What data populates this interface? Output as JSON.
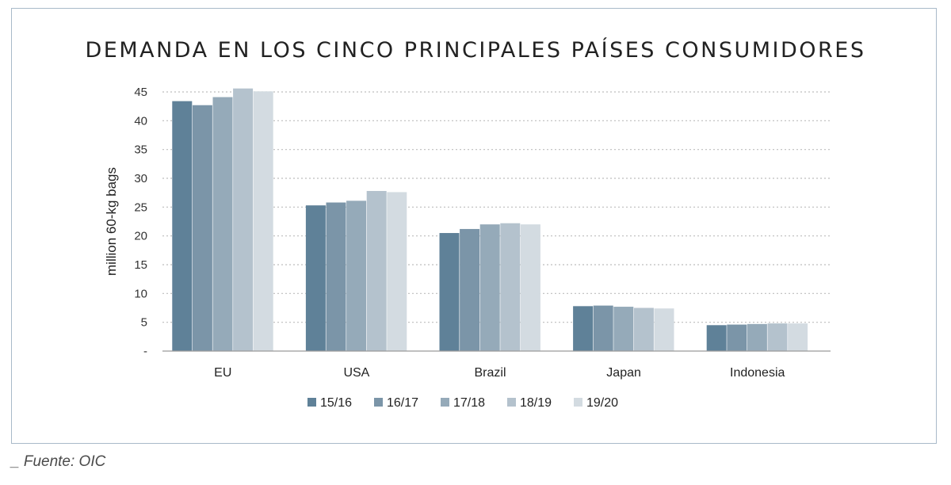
{
  "chart_data": {
    "type": "bar",
    "title": "DEMANDA EN LOS CINCO PRINCIPALES PAÍSES CONSUMIDORES",
    "ylabel": "million 60-kg bags",
    "xlabel": "",
    "ylim": [
      0,
      45
    ],
    "y_ticks": [
      {
        "value": 0,
        "label": "-"
      },
      {
        "value": 5,
        "label": "5"
      },
      {
        "value": 10,
        "label": "10"
      },
      {
        "value": 15,
        "label": "15"
      },
      {
        "value": 20,
        "label": "20"
      },
      {
        "value": 25,
        "label": "25"
      },
      {
        "value": 30,
        "label": "30"
      },
      {
        "value": 35,
        "label": "35"
      },
      {
        "value": 40,
        "label": "40"
      },
      {
        "value": 45,
        "label": "45"
      }
    ],
    "grid": true,
    "legend_position": "bottom",
    "categories": [
      "EU",
      "USA",
      "Brazil",
      "Japan",
      "Indonesia"
    ],
    "series": [
      {
        "name": "15/16",
        "color": "#5f8198",
        "values": [
          43.4,
          25.3,
          20.5,
          7.8,
          4.5
        ]
      },
      {
        "name": "16/17",
        "color": "#7b95a8",
        "values": [
          42.7,
          25.8,
          21.2,
          7.9,
          4.6
        ]
      },
      {
        "name": "17/18",
        "color": "#95aab9",
        "values": [
          44.1,
          26.1,
          22.0,
          7.7,
          4.7
        ]
      },
      {
        "name": "18/19",
        "color": "#b4c2cd",
        "values": [
          45.6,
          27.8,
          22.2,
          7.5,
          4.8
        ]
      },
      {
        "name": "19/20",
        "color": "#d3dbe1",
        "values": [
          45.1,
          27.6,
          22.0,
          7.4,
          4.8
        ]
      }
    ]
  },
  "footer": {
    "source": "_ Fuente: OIC"
  }
}
